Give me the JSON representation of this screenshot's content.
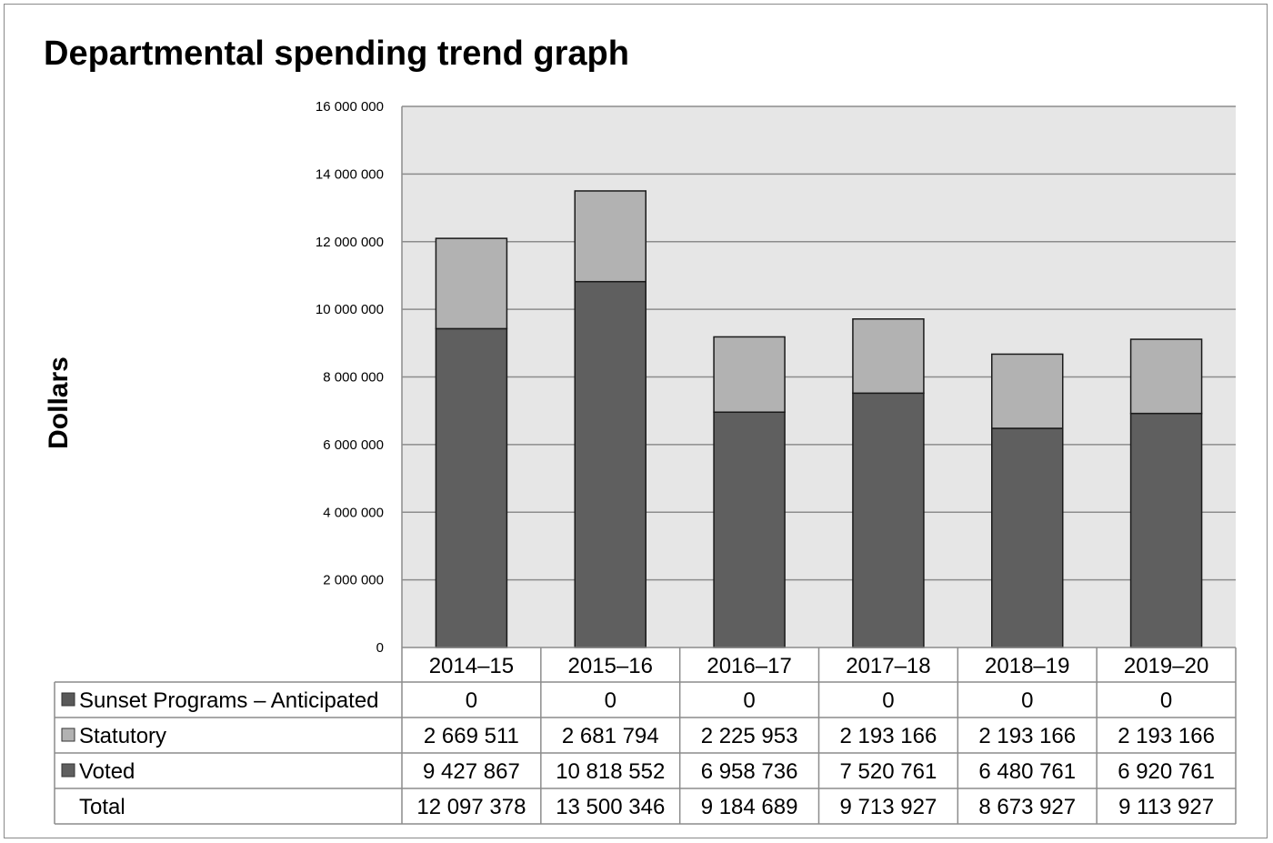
{
  "chart_data": {
    "type": "bar",
    "stacked": true,
    "title": "Departmental spending trend graph",
    "ylabel": "Dollars",
    "xlabel": "",
    "ylim": [
      0,
      16000000
    ],
    "y_ticks": [
      0,
      2000000,
      4000000,
      6000000,
      8000000,
      10000000,
      12000000,
      14000000,
      16000000
    ],
    "y_tick_labels": [
      "0",
      "2 000 000",
      "4 000 000",
      "6 000 000",
      "8 000 000",
      "10 000 000",
      "12 000 000",
      "14 000 000",
      "16 000 000"
    ],
    "grid": true,
    "legend": "data-table",
    "categories": [
      "2014–15",
      "2015–16",
      "2016–17",
      "2017–18",
      "2018–19",
      "2019–20"
    ],
    "series": [
      {
        "name": "Sunset Programs – Anticipated",
        "color": "#595959",
        "values": [
          0,
          0,
          0,
          0,
          0,
          0
        ],
        "labels": [
          "0",
          "0",
          "0",
          "0",
          "0",
          "0"
        ]
      },
      {
        "name": "Statutory",
        "color": "#b2b2b2",
        "values": [
          2669511,
          2681794,
          2225953,
          2193166,
          2193166,
          2193166
        ],
        "labels": [
          "2 669 511",
          "2 681 794",
          "2 225 953",
          "2 193 166",
          "2 193 166",
          "2 193 166"
        ]
      },
      {
        "name": "Voted",
        "color": "#5f5f5f",
        "values": [
          9427867,
          10818552,
          6958736,
          7520761,
          6480761,
          6920761
        ],
        "labels": [
          "9 427 867",
          "10 818 552",
          "6 958 736",
          "7 520 761",
          "6 480 761",
          "6 920 761"
        ]
      }
    ],
    "totals": {
      "name": "Total",
      "values": [
        12097378,
        13500346,
        9184689,
        9713927,
        8673927,
        9113927
      ],
      "labels": [
        "12 097 378",
        "13 500 346",
        "9 184 689",
        "9 713 927",
        "8 673 927",
        "9 113 927"
      ]
    },
    "plot_bg_color": "#e6e6e6"
  }
}
